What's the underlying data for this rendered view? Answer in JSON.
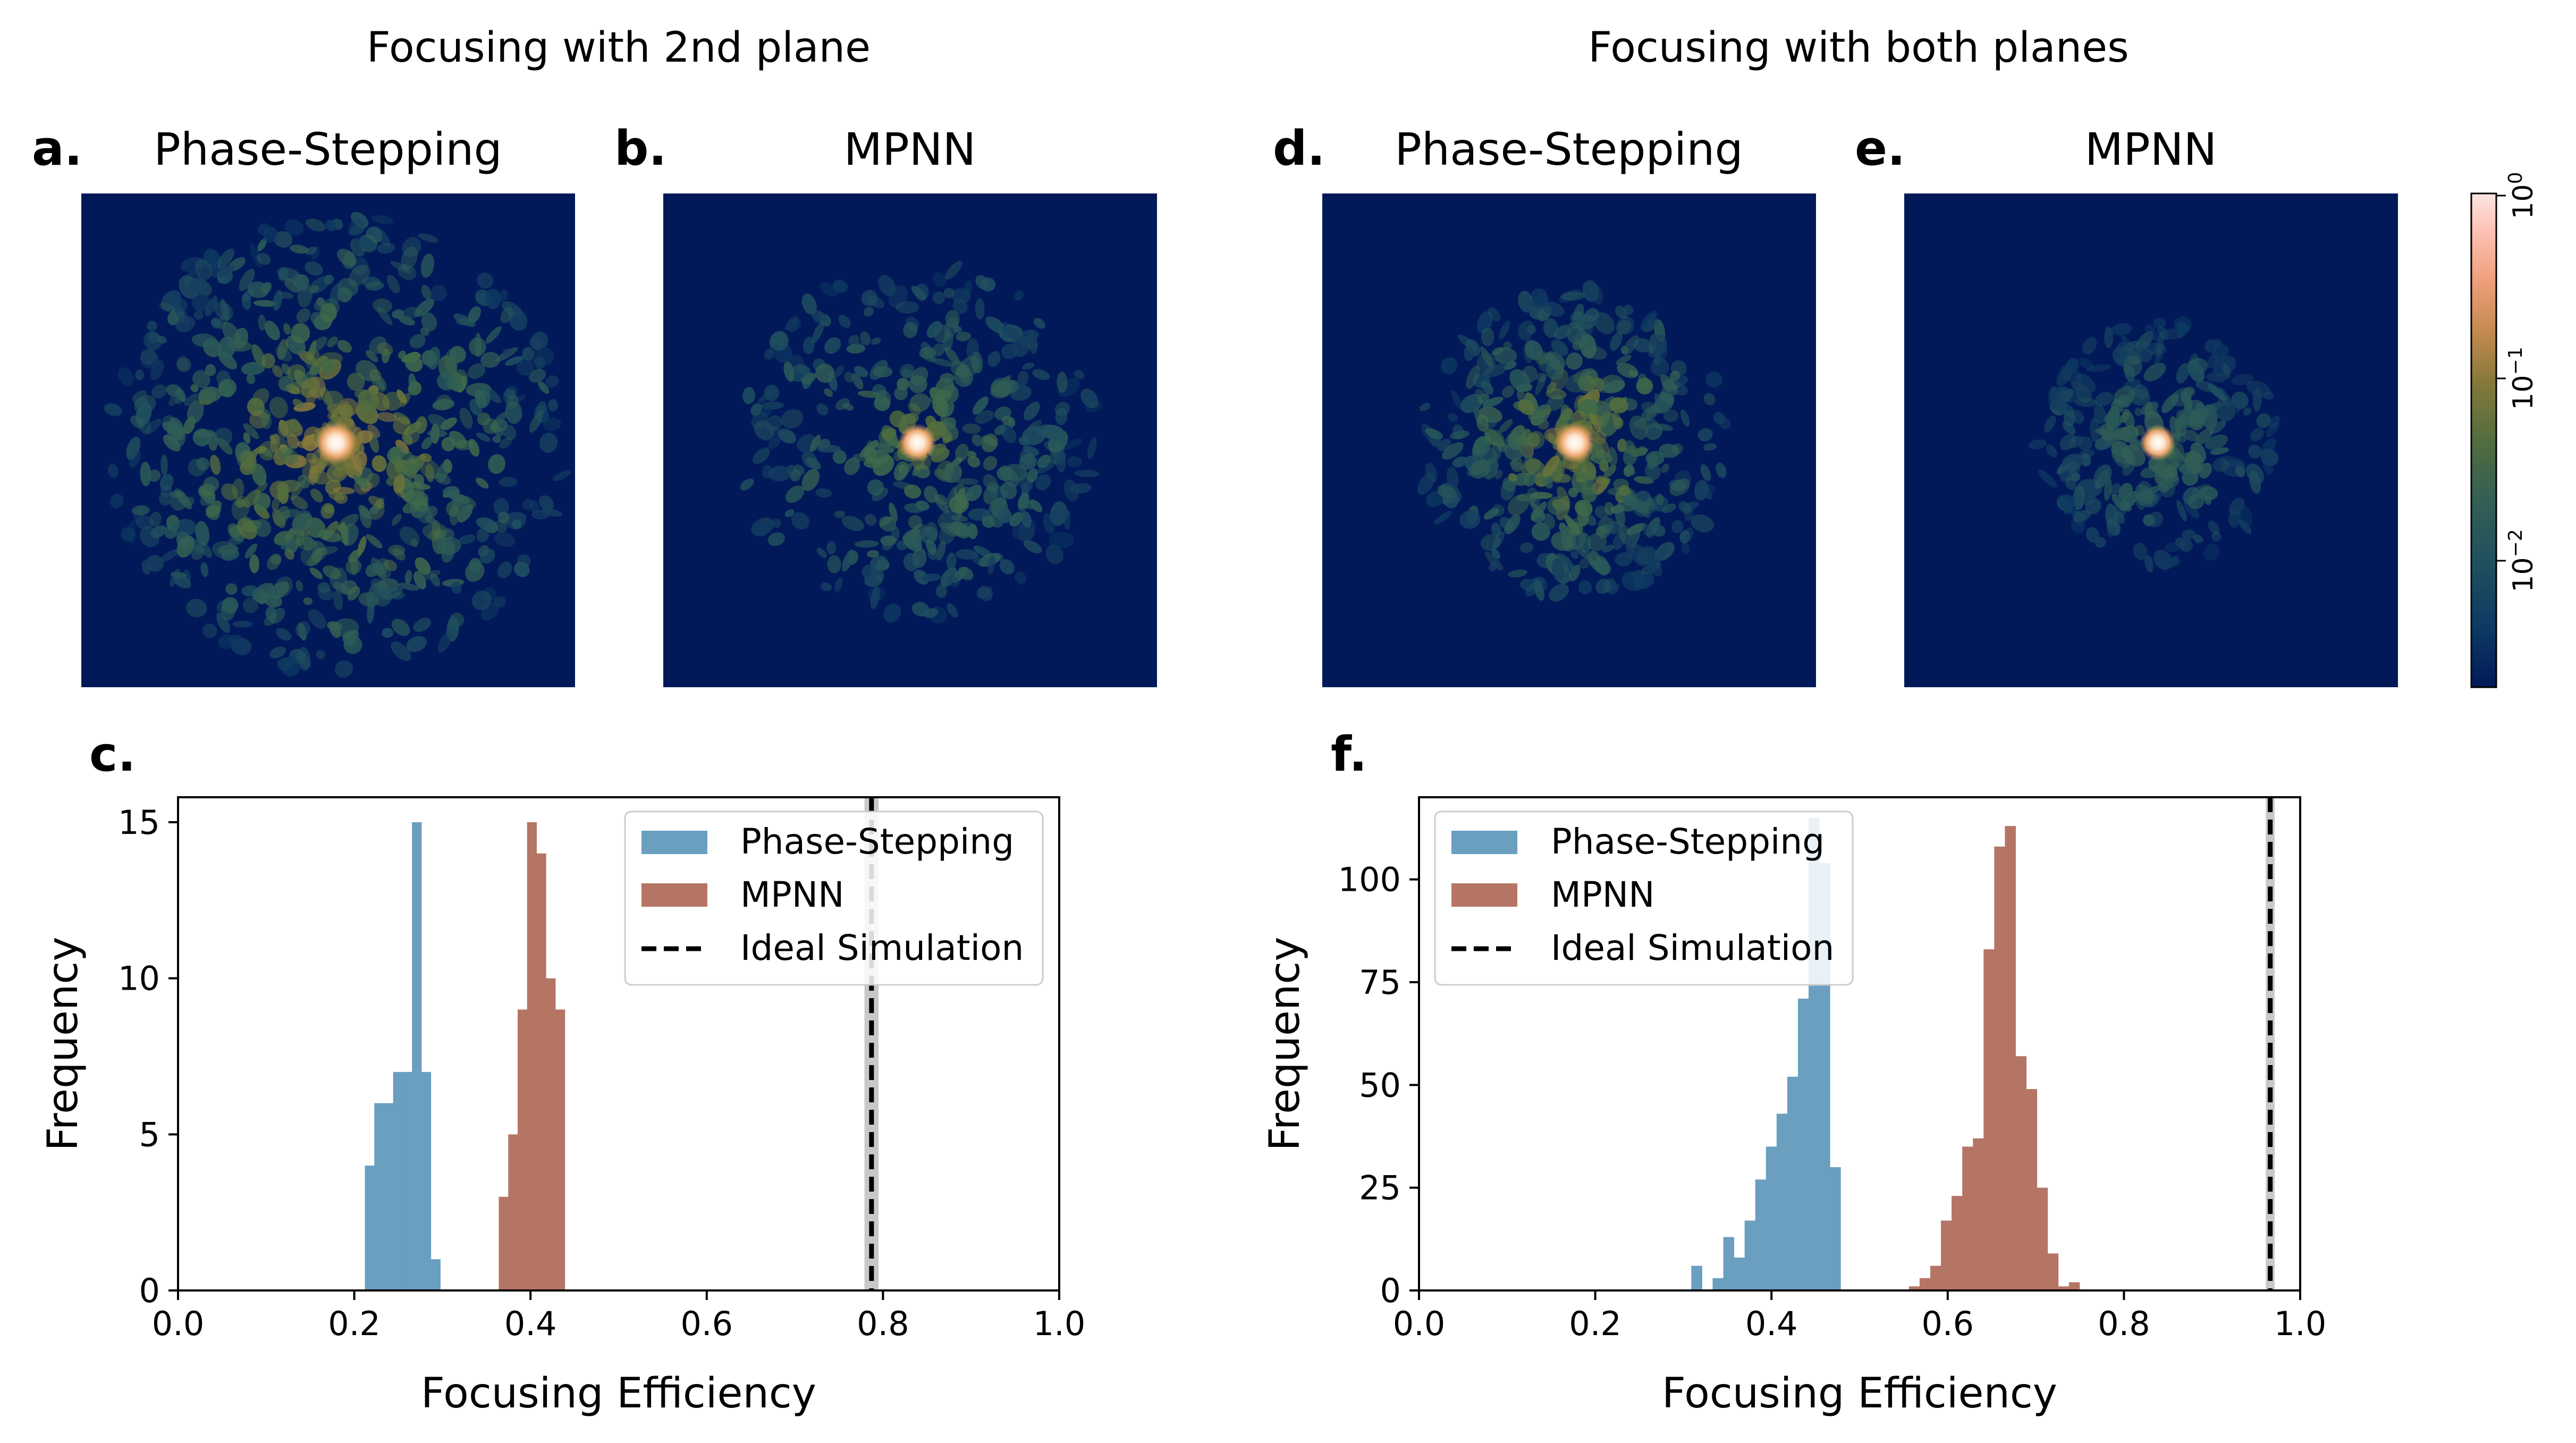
{
  "figure": {
    "section_titles": [
      "Focusing with 2nd plane",
      "Focusing with both planes"
    ]
  },
  "chart_data": [
    {
      "type": "heatmap",
      "panel": "a.",
      "title": "Phase-Stepping",
      "section": "Focusing with 2nd plane",
      "colormap": "batlow",
      "scale": "log",
      "spot": "bright central focus",
      "speckle_extent": "wide"
    },
    {
      "type": "heatmap",
      "panel": "b.",
      "title": "MPNN",
      "section": "Focusing with 2nd plane",
      "colormap": "batlow",
      "scale": "log",
      "spot": "bright central focus",
      "speckle_extent": "medium"
    },
    {
      "type": "heatmap",
      "panel": "d.",
      "title": "Phase-Stepping",
      "section": "Focusing with both planes",
      "colormap": "batlow",
      "scale": "log",
      "spot": "bright central focus",
      "speckle_extent": "medium"
    },
    {
      "type": "heatmap",
      "panel": "e.",
      "title": "MPNN",
      "section": "Focusing with both planes",
      "colormap": "batlow",
      "scale": "log",
      "spot": "bright central focus",
      "speckle_extent": "small"
    },
    {
      "type": "colorbar",
      "scale": "log",
      "ticks": [
        {
          "base": "10",
          "exp": "0"
        },
        {
          "base": "10",
          "exp": "−1"
        },
        {
          "base": "10",
          "exp": "−2"
        }
      ],
      "range": [
        0.003,
        1
      ]
    },
    {
      "type": "bar",
      "panel": "c.",
      "xlabel": "Focusing Efficiency",
      "ylabel": "Frequency",
      "xlim": [
        0,
        1
      ],
      "ylim": [
        0,
        15.8
      ],
      "xticks": [
        "0.0",
        "0.2",
        "0.4",
        "0.6",
        "0.8",
        "1.0"
      ],
      "yticks": [
        "0",
        "5",
        "10",
        "15"
      ],
      "bin_width": 0.0107,
      "legend": {
        "placement": "top-right",
        "entries": [
          "Phase-Stepping",
          "MPNN",
          "Ideal Simulation"
        ]
      },
      "series": [
        {
          "name": "Phase-Stepping",
          "color": "#6a9fc0",
          "bins": [
            [
              0.212,
              4
            ],
            [
              0.2227,
              6
            ],
            [
              0.2334,
              6
            ],
            [
              0.2441,
              7
            ],
            [
              0.2548,
              7
            ],
            [
              0.2655,
              15
            ],
            [
              0.2762,
              7
            ],
            [
              0.2869,
              1
            ]
          ]
        },
        {
          "name": "MPNN",
          "color": "#b57565",
          "bins": [
            [
              0.364,
              3
            ],
            [
              0.3747,
              5
            ],
            [
              0.3854,
              9
            ],
            [
              0.3961,
              15
            ],
            [
              0.4068,
              14
            ],
            [
              0.4175,
              10
            ],
            [
              0.4282,
              9
            ]
          ]
        }
      ],
      "ideal_simulation": {
        "x": 0.787,
        "band": [
          0.779,
          0.795
        ],
        "style": "dashed",
        "color": "#000000",
        "band_color": "#c8c8c8"
      }
    },
    {
      "type": "bar",
      "panel": "f.",
      "xlabel": "Focusing Efficiency",
      "ylabel": "Frequency",
      "xlim": [
        0,
        1
      ],
      "ylim": [
        0,
        120
      ],
      "xticks": [
        "0.0",
        "0.2",
        "0.4",
        "0.6",
        "0.8",
        "1.0"
      ],
      "yticks": [
        "0",
        "25",
        "50",
        "75",
        "100"
      ],
      "bin_width": 0.0121,
      "legend": {
        "placement": "top-left",
        "entries": [
          "Phase-Stepping",
          "MPNN",
          "Ideal Simulation"
        ]
      },
      "series": [
        {
          "name": "Phase-Stepping",
          "color": "#6a9fc0",
          "bins": [
            [
              0.309,
              6
            ],
            [
              0.3211,
              0
            ],
            [
              0.3332,
              3
            ],
            [
              0.3453,
              13
            ],
            [
              0.3574,
              8
            ],
            [
              0.3695,
              17
            ],
            [
              0.3816,
              27
            ],
            [
              0.3937,
              35
            ],
            [
              0.4058,
              43
            ],
            [
              0.4179,
              52
            ],
            [
              0.43,
              71
            ],
            [
              0.4421,
              115
            ],
            [
              0.4542,
              104
            ],
            [
              0.4663,
              30
            ]
          ]
        },
        {
          "name": "MPNN",
          "color": "#b57565",
          "bins": [
            [
              0.556,
              1
            ],
            [
              0.5681,
              3
            ],
            [
              0.5802,
              6
            ],
            [
              0.5923,
              17
            ],
            [
              0.6044,
              23
            ],
            [
              0.6165,
              35
            ],
            [
              0.6286,
              37
            ],
            [
              0.6407,
              83
            ],
            [
              0.6528,
              108
            ],
            [
              0.6649,
              113
            ],
            [
              0.677,
              57
            ],
            [
              0.6891,
              49
            ],
            [
              0.7012,
              25
            ],
            [
              0.7133,
              9
            ],
            [
              0.7254,
              1
            ],
            [
              0.7375,
              2
            ]
          ]
        }
      ],
      "ideal_simulation": {
        "x": 0.966,
        "band": [
          0.961,
          0.971
        ],
        "style": "dashed",
        "color": "#000000",
        "band_color": "#c8c8c8"
      }
    }
  ]
}
